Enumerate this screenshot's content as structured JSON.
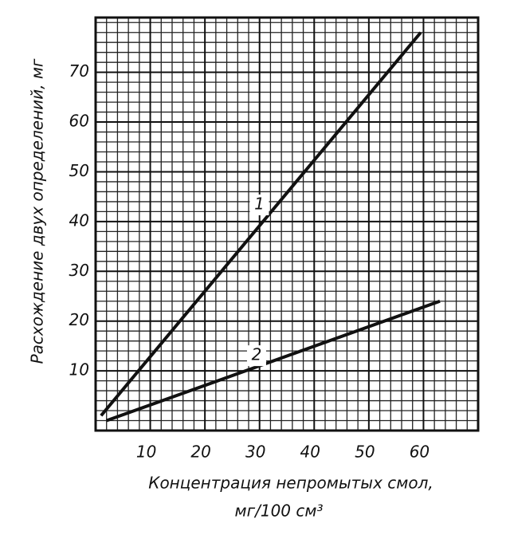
{
  "chart_data": {
    "type": "line",
    "ylabel": "Расхождение двух определений, мг",
    "xlabel": [
      "Концентрация непромытых смол,",
      "мг/100 см³"
    ],
    "series": [
      {
        "name": "1",
        "color": "#111111",
        "x": [
          1,
          59.5
        ],
        "values": [
          1,
          78
        ]
      },
      {
        "name": "2",
        "color": "#111111",
        "x": [
          2,
          63
        ],
        "values": [
          0,
          24
        ]
      }
    ],
    "xlim": [
      0,
      70
    ],
    "ylim": [
      -2,
      81
    ],
    "xticks": [
      10,
      20,
      30,
      40,
      50,
      60
    ],
    "yticks": [
      10,
      20,
      30,
      40,
      50,
      60,
      70
    ],
    "grid": true
  }
}
